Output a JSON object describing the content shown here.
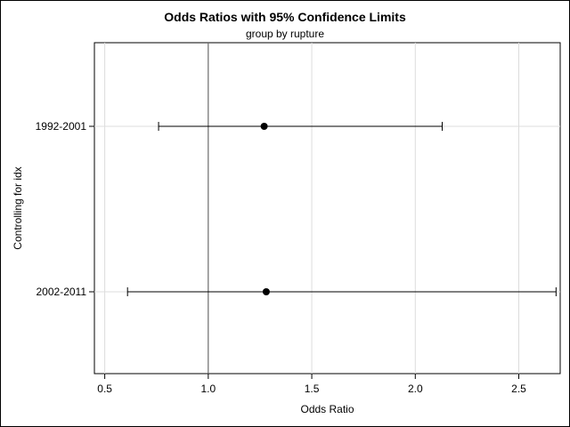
{
  "chart_data": {
    "type": "scatter",
    "title": "Odds Ratios with 95% Confidence Limits",
    "subtitle": "group by rupture",
    "xlabel": "Odds Ratio",
    "ylabel": "Controlling for idx",
    "xlim": [
      0.45,
      2.7
    ],
    "xticks": [
      "0.5",
      "1.0",
      "1.5",
      "2.0",
      "2.5"
    ],
    "xtick_values": [
      0.5,
      1.0,
      1.5,
      2.0,
      2.5
    ],
    "reference_line": 1.0,
    "grid": true,
    "categories": [
      "1992-2001",
      "2002-2011"
    ],
    "estimates": [
      1.27,
      1.28
    ],
    "lower": [
      0.76,
      0.61
    ],
    "upper": [
      2.13,
      2.68
    ]
  }
}
